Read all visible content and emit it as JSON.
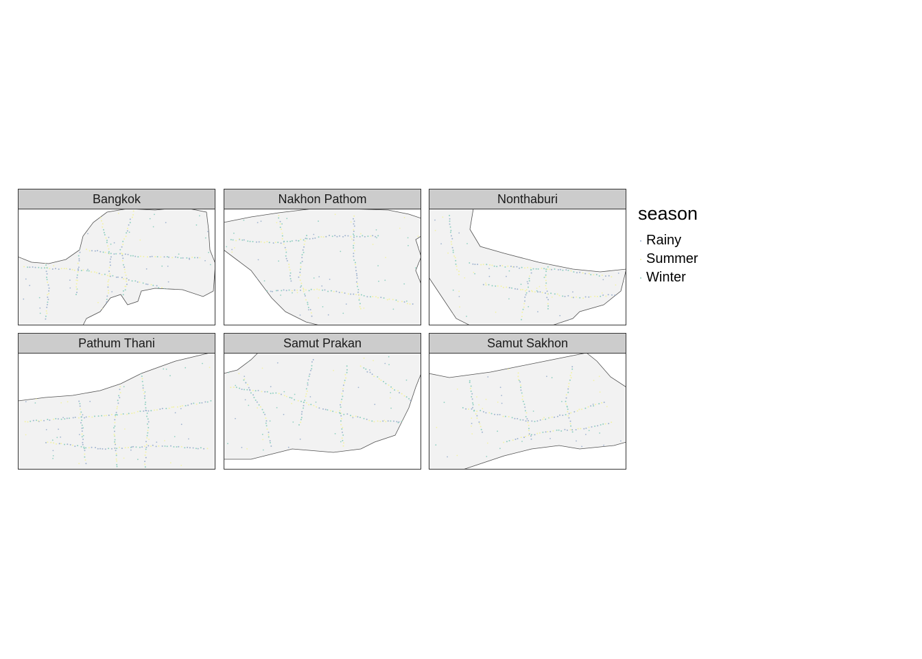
{
  "legend": {
    "title": "season",
    "items": [
      {
        "label": "Rainy",
        "color": "#9fb3cf",
        "icon": "dot-icon"
      },
      {
        "label": "Summer",
        "color": "#f2f2a6",
        "icon": "dot-icon"
      },
      {
        "label": "Winter",
        "color": "#8fcfc0",
        "icon": "dot-icon"
      }
    ]
  },
  "colors": {
    "land": "#f2f2f2",
    "border": "#4d4d4d",
    "strip": "#cccccc"
  },
  "panels": [
    {
      "id": "bangkok",
      "label": "Bangkok"
    },
    {
      "id": "nakhon-pathom",
      "label": "Nakhon Pathom"
    },
    {
      "id": "nonthaburi",
      "label": "Nonthaburi"
    },
    {
      "id": "pathum-thani",
      "label": "Pathum Thani"
    },
    {
      "id": "samut-prakan",
      "label": "Samut Prakan"
    },
    {
      "id": "samut-sakhon",
      "label": "Samut Sakhon"
    }
  ]
}
